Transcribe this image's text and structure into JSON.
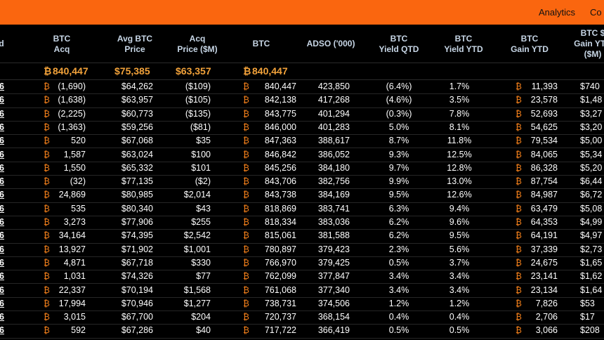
{
  "nav": {
    "analytics": "Analytics",
    "next_partial": "Co"
  },
  "btc_symbol": "₿",
  "columns": [
    {
      "key": "date",
      "label": "d"
    },
    {
      "key": "btc_acq",
      "label": "BTC\nAcq"
    },
    {
      "key": "avg_price",
      "label": "Avg BTC\nPrice"
    },
    {
      "key": "acq_price",
      "label": "Acq\nPrice ($M)"
    },
    {
      "key": "btc",
      "label": "BTC"
    },
    {
      "key": "adso",
      "label": "ADSO ('000)"
    },
    {
      "key": "yield_qtd",
      "label": "BTC\nYield QTD"
    },
    {
      "key": "yield_ytd",
      "label": "BTC\nYield YTD"
    },
    {
      "key": "gain_ytd",
      "label": "BTC\nGain YTD"
    },
    {
      "key": "gain_ytd_usd",
      "label": "BTC $\nGain YTD\n($M)"
    }
  ],
  "summary": {
    "btc_acq": "840,447",
    "avg_price": "$75,385",
    "acq_price": "$63,357",
    "btc": "840,447"
  },
  "rows": [
    {
      "date": "6",
      "btc_acq": "(1,690)",
      "avg_price": "$64,262",
      "acq_price": "($109)",
      "btc": "840,447",
      "adso": "423,850",
      "yield_qtd": "(6.4%)",
      "yield_ytd": "1.7%",
      "gain_ytd": "11,393",
      "gain_usd": "$740"
    },
    {
      "date": "6",
      "btc_acq": "(1,638)",
      "avg_price": "$63,957",
      "acq_price": "($105)",
      "btc": "842,138",
      "adso": "417,268",
      "yield_qtd": "(4.6%)",
      "yield_ytd": "3.5%",
      "gain_ytd": "23,578",
      "gain_usd": "$1,48"
    },
    {
      "date": "6",
      "btc_acq": "(2,225)",
      "avg_price": "$60,773",
      "acq_price": "($135)",
      "btc": "843,775",
      "adso": "401,294",
      "yield_qtd": "(0.3%)",
      "yield_ytd": "7.8%",
      "gain_ytd": "52,693",
      "gain_usd": "$3,27"
    },
    {
      "date": "6",
      "btc_acq": "(1,363)",
      "avg_price": "$59,256",
      "acq_price": "($81)",
      "btc": "846,000",
      "adso": "401,283",
      "yield_qtd": "5.0%",
      "yield_ytd": "8.1%",
      "gain_ytd": "54,625",
      "gain_usd": "$3,20"
    },
    {
      "date": "6",
      "btc_acq": "520",
      "avg_price": "$67,068",
      "acq_price": "$35",
      "btc": "847,363",
      "adso": "388,617",
      "yield_qtd": "8.7%",
      "yield_ytd": "11.8%",
      "gain_ytd": "79,534",
      "gain_usd": "$5,00"
    },
    {
      "date": "6",
      "btc_acq": "1,587",
      "avg_price": "$63,024",
      "acq_price": "$100",
      "btc": "846,842",
      "adso": "386,052",
      "yield_qtd": "9.3%",
      "yield_ytd": "12.5%",
      "gain_ytd": "84,065",
      "gain_usd": "$5,34"
    },
    {
      "date": "6",
      "btc_acq": "1,550",
      "avg_price": "$65,332",
      "acq_price": "$101",
      "btc": "845,256",
      "adso": "384,180",
      "yield_qtd": "9.7%",
      "yield_ytd": "12.8%",
      "gain_ytd": "86,328",
      "gain_usd": "$5,20"
    },
    {
      "date": "6",
      "btc_acq": "(32)",
      "avg_price": "$77,135",
      "acq_price": "($2)",
      "btc": "843,706",
      "adso": "382,756",
      "yield_qtd": "9.9%",
      "yield_ytd": "13.0%",
      "gain_ytd": "87,754",
      "gain_usd": "$6,44"
    },
    {
      "date": "6",
      "btc_acq": "24,869",
      "avg_price": "$80,985",
      "acq_price": "$2,014",
      "btc": "843,738",
      "adso": "384,169",
      "yield_qtd": "9.5%",
      "yield_ytd": "12.6%",
      "gain_ytd": "84,987",
      "gain_usd": "$6,72"
    },
    {
      "date": "6",
      "btc_acq": "535",
      "avg_price": "$80,340",
      "acq_price": "$43",
      "btc": "818,869",
      "adso": "383,741",
      "yield_qtd": "6.3%",
      "yield_ytd": "9.4%",
      "gain_ytd": "63,479",
      "gain_usd": "$5,08"
    },
    {
      "date": "6",
      "btc_acq": "3,273",
      "avg_price": "$77,906",
      "acq_price": "$255",
      "btc": "818,334",
      "adso": "383,036",
      "yield_qtd": "6.2%",
      "yield_ytd": "9.6%",
      "gain_ytd": "64,353",
      "gain_usd": "$4,99"
    },
    {
      "date": "6",
      "btc_acq": "34,164",
      "avg_price": "$74,395",
      "acq_price": "$2,542",
      "btc": "815,061",
      "adso": "381,588",
      "yield_qtd": "6.2%",
      "yield_ytd": "9.5%",
      "gain_ytd": "64,191",
      "gain_usd": "$4,97"
    },
    {
      "date": "6",
      "btc_acq": "13,927",
      "avg_price": "$71,902",
      "acq_price": "$1,001",
      "btc": "780,897",
      "adso": "379,423",
      "yield_qtd": "2.3%",
      "yield_ytd": "5.6%",
      "gain_ytd": "37,339",
      "gain_usd": "$2,73"
    },
    {
      "date": "6",
      "btc_acq": "4,871",
      "avg_price": "$67,718",
      "acq_price": "$330",
      "btc": "766,970",
      "adso": "379,425",
      "yield_qtd": "0.5%",
      "yield_ytd": "3.7%",
      "gain_ytd": "24,675",
      "gain_usd": "$1,65"
    },
    {
      "date": "6",
      "btc_acq": "1,031",
      "avg_price": "$74,326",
      "acq_price": "$77",
      "btc": "762,099",
      "adso": "377,847",
      "yield_qtd": "3.4%",
      "yield_ytd": "3.4%",
      "gain_ytd": "23,141",
      "gain_usd": "$1,62"
    },
    {
      "date": "6",
      "btc_acq": "22,337",
      "avg_price": "$70,194",
      "acq_price": "$1,568",
      "btc": "761,068",
      "adso": "377,340",
      "yield_qtd": "3.4%",
      "yield_ytd": "3.4%",
      "gain_ytd": "23,134",
      "gain_usd": "$1,64"
    },
    {
      "date": "6",
      "btc_acq": "17,994",
      "avg_price": "$70,946",
      "acq_price": "$1,277",
      "btc": "738,731",
      "adso": "374,506",
      "yield_qtd": "1.2%",
      "yield_ytd": "1.2%",
      "gain_ytd": "7,826",
      "gain_usd": "$53"
    },
    {
      "date": "6",
      "btc_acq": "3,015",
      "avg_price": "$67,700",
      "acq_price": "$204",
      "btc": "720,737",
      "adso": "368,154",
      "yield_qtd": "0.4%",
      "yield_ytd": "0.4%",
      "gain_ytd": "2,706",
      "gain_usd": "$17"
    },
    {
      "date": "6",
      "btc_acq": "592",
      "avg_price": "$67,286",
      "acq_price": "$40",
      "btc": "717,722",
      "adso": "366,419",
      "yield_qtd": "0.5%",
      "yield_ytd": "0.5%",
      "gain_ytd": "3,066",
      "gain_usd": "$208"
    }
  ]
}
